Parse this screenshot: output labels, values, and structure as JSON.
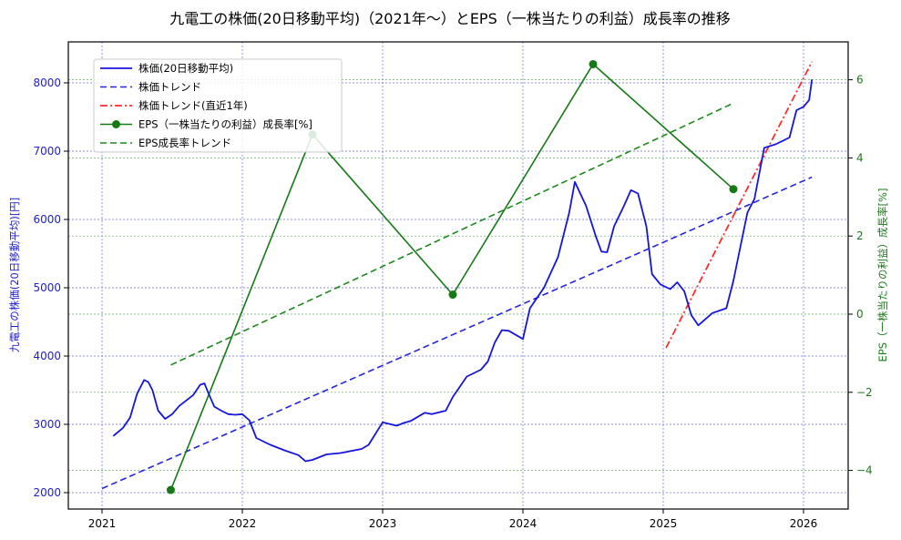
{
  "chart_data": {
    "type": "line",
    "title": "九電工の株価(20日移動平均)（2021年〜）とEPS（一株当たりの利益）成長率の推移",
    "xlabel": "",
    "ylabel_left": "九電工の株価(20日移動平均)[円]",
    "ylabel_right": "EPS（一株当たりの利益）成長率[%]",
    "x_ticks": [
      "2021",
      "2022",
      "2023",
      "2024",
      "2025",
      "2026"
    ],
    "y_left_ticks": [
      "2000",
      "3000",
      "4000",
      "5000",
      "6000",
      "7000",
      "8000"
    ],
    "y_right_ticks": [
      "−4",
      "−2",
      "0",
      "2",
      "4",
      "6"
    ],
    "xlim": [
      2020.75,
      2026.3
    ],
    "ylim_left": [
      1750,
      8600
    ],
    "ylim_right": [
      -4.9,
      7.0
    ],
    "grid": true,
    "legend_position": "upper left",
    "colors": {
      "price": "#1515e0",
      "price_trend": "#2525e0",
      "price_trend_recent": "#ff2a2a",
      "eps": "#157a15",
      "eps_trend": "#1a8a1a",
      "grid_left": "#6a6ae8",
      "grid_right": "#5fae5f",
      "left_axis": "#2020d0",
      "right_axis": "#1a7a1a"
    },
    "legend": [
      "株価(20日移動平均)",
      "株価トレンド",
      "株価トレンド(直近1年)",
      "EPS（一株当たりの利益）成長率[%]",
      "EPS成長率トレンド"
    ],
    "series": [
      {
        "name": "株価(20日移動平均)",
        "axis": "left",
        "style": "solid",
        "x": [
          2021.08,
          2021.15,
          2021.2,
          2021.25,
          2021.3,
          2021.33,
          2021.36,
          2021.4,
          2021.45,
          2021.5,
          2021.55,
          2021.6,
          2021.65,
          2021.7,
          2021.73,
          2021.76,
          2021.8,
          2021.85,
          2021.9,
          2021.95,
          2022.0,
          2022.05,
          2022.1,
          2022.2,
          2022.3,
          2022.4,
          2022.45,
          2022.5,
          2022.6,
          2022.7,
          2022.8,
          2022.85,
          2022.9,
          2023.0,
          2023.1,
          2023.15,
          2023.2,
          2023.3,
          2023.35,
          2023.45,
          2023.5,
          2023.6,
          2023.7,
          2023.75,
          2023.8,
          2023.85,
          2023.9,
          2024.0,
          2024.05,
          2024.15,
          2024.25,
          2024.33,
          2024.37,
          2024.45,
          2024.52,
          2024.56,
          2024.6,
          2024.65,
          2024.72,
          2024.77,
          2024.82,
          2024.88,
          2024.92,
          2024.98,
          2025.05,
          2025.1,
          2025.15,
          2025.2,
          2025.25,
          2025.35,
          2025.45,
          2025.5,
          2025.55,
          2025.6,
          2025.65,
          2025.72,
          2025.8,
          2025.85,
          2025.9,
          2025.95,
          2026.0,
          2026.04,
          2026.06
        ],
        "values": [
          2830,
          2950,
          3100,
          3450,
          3650,
          3620,
          3500,
          3200,
          3080,
          3150,
          3270,
          3350,
          3430,
          3580,
          3600,
          3450,
          3260,
          3200,
          3150,
          3140,
          3150,
          3060,
          2800,
          2700,
          2620,
          2550,
          2460,
          2480,
          2560,
          2580,
          2620,
          2640,
          2700,
          3030,
          2980,
          3020,
          3050,
          3170,
          3150,
          3200,
          3400,
          3700,
          3800,
          3920,
          4200,
          4380,
          4370,
          4250,
          4700,
          5000,
          5450,
          6100,
          6550,
          6200,
          5750,
          5530,
          5520,
          5900,
          6200,
          6430,
          6380,
          5900,
          5200,
          5050,
          4980,
          5080,
          4950,
          4600,
          4450,
          4630,
          4700,
          5100,
          5600,
          6100,
          6300,
          7050,
          7100,
          7150,
          7200,
          7600,
          7650,
          7750,
          8050
        ]
      },
      {
        "name": "株価トレンド",
        "axis": "left",
        "style": "dashed",
        "x": [
          2021.0,
          2026.06
        ],
        "values": [
          2060,
          6620
        ]
      },
      {
        "name": "株価トレンド(直近1年)",
        "axis": "left",
        "style": "dashdot",
        "x": [
          2025.02,
          2026.06
        ],
        "values": [
          4120,
          8310
        ]
      },
      {
        "name": "EPS（一株当たりの利益）成長率[%]",
        "axis": "right",
        "style": "solid-marker",
        "x": [
          2021.49,
          2022.5,
          2023.5,
          2024.5,
          2025.5
        ],
        "values": [
          -4.5,
          4.6,
          0.5,
          6.4,
          3.2
        ]
      },
      {
        "name": "EPS成長率トレンド",
        "axis": "right",
        "style": "dashed",
        "x": [
          2021.49,
          2025.5
        ],
        "values": [
          -1.3,
          5.4
        ]
      }
    ]
  }
}
